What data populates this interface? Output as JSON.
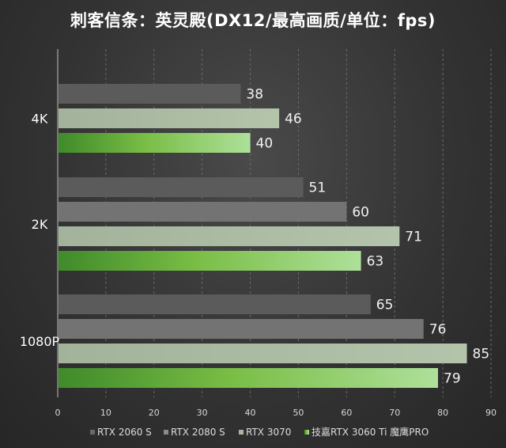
{
  "chart_data": {
    "type": "bar",
    "orientation": "horizontal",
    "title": "刺客信条：英灵殿(DX12/最高画质/单位：fps)",
    "categories": [
      "4K",
      "2K",
      "1080P"
    ],
    "series": [
      {
        "name": "RTX 2060 S",
        "values": [
          38,
          51,
          65
        ],
        "color": "#5b5b5b"
      },
      {
        "name": "RTX 2080 S",
        "values": [
          null,
          60,
          76
        ],
        "color": "#727272"
      },
      {
        "name": "RTX 3070",
        "values": [
          46,
          71,
          85
        ],
        "color": "#a8b8a0"
      },
      {
        "name": "技嘉RTX 3060 Ti 魔鹰PRO",
        "values": [
          40,
          63,
          79
        ],
        "color": "#7bc043"
      }
    ],
    "xlim": [
      0,
      90
    ],
    "x_ticks": [
      0,
      10,
      20,
      30,
      40,
      50,
      60,
      70,
      80,
      90
    ],
    "grid": "vertical-dashed",
    "legend_position": "bottom"
  }
}
